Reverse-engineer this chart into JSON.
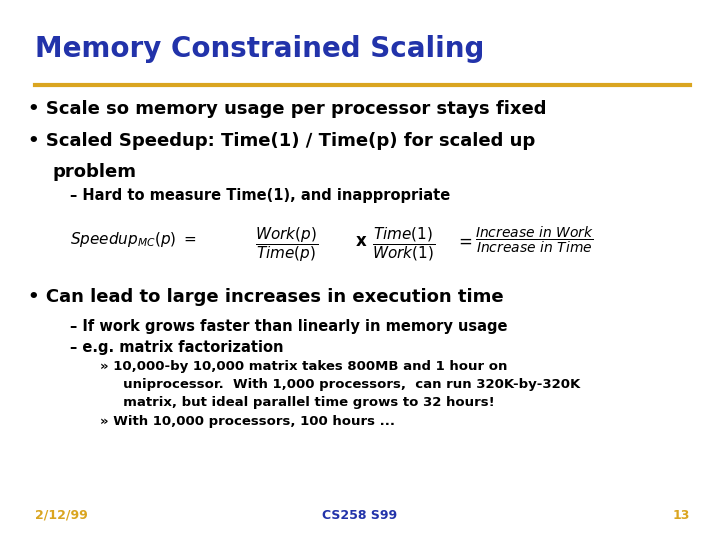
{
  "title": "Memory Constrained Scaling",
  "title_color": "#2233AA",
  "title_fontsize": 20,
  "separator_color": "#DAA520",
  "slide_bg": "#FFFFFF",
  "footer_date": "2/12/99",
  "footer_course": "CS258 S99",
  "footer_page": "13",
  "footer_color": "#DAA520",
  "footer_course_color": "#2233AA",
  "text_color": "#000000",
  "bullet_fontsize": 13,
  "sub_fontsize": 10.5,
  "detail_fontsize": 9.5,
  "formula_fontsize": 11
}
